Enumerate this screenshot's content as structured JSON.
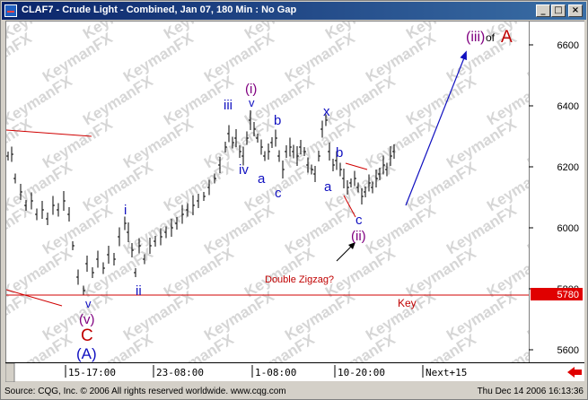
{
  "window": {
    "title": "CLAF7 - Crude Light - Combined, Jan 07, 180 Min : No Gap",
    "buttons": {
      "minimize": "_",
      "restore": "□",
      "close": "×"
    }
  },
  "axis": {
    "y_ticks": [
      "6600",
      "6400",
      "6200",
      "6000",
      "5800",
      "5600"
    ],
    "key_price": "5780",
    "x_ticks": [
      "15-17:00",
      "23-08:00",
      "1-08:00",
      "10-20:00"
    ],
    "next_label": "Next+15"
  },
  "watermark": "KeymanFX",
  "annotations": {
    "wave_iii_of_A": {
      "wave": "(iii)",
      "of": "of",
      "target": "A"
    },
    "wave_i_top": "(i)",
    "v_under_i": "v",
    "iii_small": "iii",
    "iv_small": "iv",
    "a_small": "a",
    "b_small": "b",
    "c_small": "c",
    "x_small": "x",
    "a2_small": "a",
    "b2_small": "b",
    "c2_small": "c",
    "wave_ii": "(ii)",
    "double_zigzag": "Double Zigzag?",
    "key_label": "Key",
    "i_small": "i",
    "ii_small": "ii",
    "v_bottom": "v",
    "wave_v_paren": "(v)",
    "wave_C": "C",
    "wave_A_paren": "(A)"
  },
  "colors": {
    "price_bars": "#000000",
    "wave_blue": "#1010c0",
    "wave_purple": "#800080",
    "wave_red": "#c00000",
    "key_line": "#c00000",
    "projection_arrow": "#1010c0",
    "key_box": "#e00000"
  },
  "status": {
    "source": "Source: CQG, Inc. © 2006 All rights reserved worldwide. www.cqg.com",
    "datetime": "Thu Dec 14 2006 16:13:36"
  }
}
